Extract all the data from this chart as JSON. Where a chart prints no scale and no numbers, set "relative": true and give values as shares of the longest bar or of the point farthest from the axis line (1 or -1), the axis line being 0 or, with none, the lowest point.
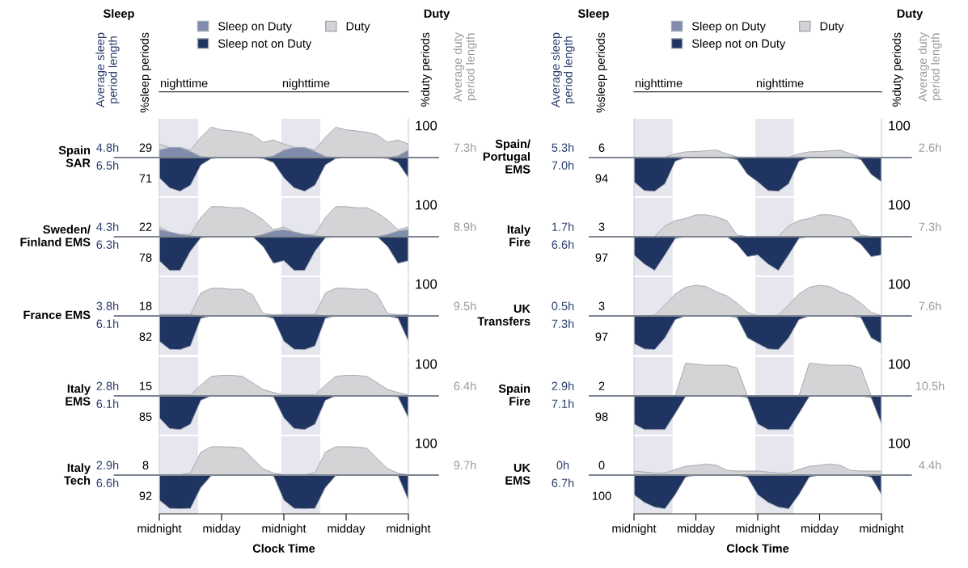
{
  "chart_data": [
    {
      "type": "area",
      "relative": true,
      "categories": [
        null,
        null,
        null,
        null,
        null,
        null,
        null,
        null,
        null,
        null,
        null,
        null,
        null,
        null,
        null,
        null,
        null,
        null,
        null,
        null,
        null,
        null,
        null,
        null,
        null
      ],
      "tick_labels": false,
      "legend": "top",
      "series": [
        {
          "name": "Sleep on Duty",
          "color": "#7f8cab",
          "values": [
            0.22,
            0.3,
            0.3,
            0.18,
            0.03,
            0,
            0,
            0,
            0,
            0,
            0,
            0.05,
            0.22,
            0.3,
            0.3,
            0.18,
            0.03,
            0,
            0,
            0,
            0,
            0,
            0,
            0.05,
            0.22
          ]
        },
        {
          "name": "Duty",
          "color": "#d4d4d6",
          "values": [
            0.4,
            0.3,
            0.3,
            0.22,
            0.6,
            0.9,
            0.82,
            0.79,
            0.75,
            0.67,
            0.45,
            0.52,
            0.4,
            0.3,
            0.3,
            0.22,
            0.6,
            0.9,
            0.82,
            0.79,
            0.75,
            0.67,
            0.45,
            0.52,
            0.4
          ]
        },
        {
          "name": "Sleep not on Duty",
          "color": "#1f3461",
          "values": [
            -0.6,
            -0.9,
            -1,
            -0.82,
            -0.22,
            -0.03,
            0,
            0,
            0,
            0,
            -0.03,
            -0.15,
            -0.6,
            -0.9,
            -1,
            -0.82,
            -0.22,
            -0.03,
            0,
            0,
            0,
            0,
            -0.03,
            -0.15,
            -0.6
          ]
        }
      ],
      "annotations": [
        "Spain\nSAR",
        "4.8h",
        "6.5h",
        "29",
        "71",
        "100",
        "7.3h",
        "Sleep",
        "Duty",
        "Average sleep\nperiod length",
        "%sleep periods",
        "%duty periods",
        "Average duty\nperiod length",
        "nighttime",
        "nighttime"
      ]
    },
    {
      "type": "area",
      "relative": true,
      "categories": [
        null,
        null,
        null,
        null,
        null,
        null,
        null,
        null,
        null,
        null,
        null,
        null,
        null,
        null,
        null,
        null,
        null,
        null,
        null,
        null,
        null,
        null,
        null,
        null,
        null
      ],
      "tick_labels": false,
      "series": [
        {
          "color": "#7f8cab",
          "values": [
            0.21,
            0.14,
            0.07,
            0.03,
            0,
            0,
            0,
            0,
            0,
            0,
            0.07,
            0.17,
            0.21,
            0.14,
            0.07,
            0.03,
            0,
            0,
            0,
            0,
            0,
            0,
            0.07,
            0.17,
            0.21
          ]
        },
        {
          "color": "#d4d4d6",
          "values": [
            0.29,
            0.14,
            0.07,
            0.07,
            0.57,
            0.89,
            0.89,
            0.86,
            0.86,
            0.71,
            0.5,
            0.21,
            0.29,
            0.14,
            0.07,
            0.07,
            0.57,
            0.89,
            0.89,
            0.86,
            0.86,
            0.71,
            0.5,
            0.21,
            0.29
          ]
        },
        {
          "color": "#1f3461",
          "values": [
            -0.71,
            -1,
            -1,
            -0.43,
            -0.03,
            0,
            0,
            0,
            0,
            0,
            -0.29,
            -0.79,
            -0.71,
            -1,
            -1,
            -0.43,
            -0.03,
            0,
            0,
            0,
            0,
            0,
            -0.29,
            -0.79,
            -0.71
          ]
        }
      ],
      "annotations": [
        "Sweden/\nFinland EMS",
        "4.3h",
        "6.3h",
        "22",
        "78",
        "100",
        "8.9h"
      ]
    },
    {
      "type": "area",
      "relative": true,
      "categories": [
        null,
        null,
        null,
        null,
        null,
        null,
        null,
        null,
        null,
        null,
        null,
        null,
        null,
        null,
        null,
        null,
        null,
        null,
        null,
        null,
        null,
        null,
        null,
        null,
        null
      ],
      "tick_labels": false,
      "series": [
        {
          "color": "#7f8cab",
          "values": [
            0.04,
            0.04,
            0.04,
            0.04,
            0,
            0,
            0,
            0,
            0,
            0,
            0,
            0,
            0.04,
            0.04,
            0.04,
            0.04,
            0,
            0,
            0,
            0,
            0,
            0,
            0,
            0,
            0.04
          ]
        },
        {
          "color": "#d4d4d6",
          "values": [
            0.04,
            0.04,
            0.04,
            0.04,
            0.68,
            0.82,
            0.82,
            0.79,
            0.79,
            0.62,
            0.07,
            0.04,
            0.04,
            0.04,
            0.04,
            0.04,
            0.68,
            0.82,
            0.82,
            0.79,
            0.79,
            0.62,
            0.07,
            0.04,
            0.04
          ]
        },
        {
          "color": "#1f3461",
          "values": [
            -0.75,
            -0.99,
            -1,
            -0.89,
            -0.07,
            0,
            0,
            0,
            0,
            0,
            0,
            -0.07,
            -0.75,
            -0.99,
            -1,
            -0.89,
            -0.07,
            0,
            0,
            0,
            0,
            0,
            0,
            -0.07,
            -0.75
          ]
        }
      ],
      "annotations": [
        "France EMS",
        "3.8h",
        "6.1h",
        "18",
        "82",
        "100",
        "9.5h"
      ]
    },
    {
      "type": "area",
      "relative": true,
      "categories": [
        null,
        null,
        null,
        null,
        null,
        null,
        null,
        null,
        null,
        null,
        null,
        null,
        null,
        null,
        null,
        null,
        null,
        null,
        null,
        null,
        null,
        null,
        null,
        null,
        null
      ],
      "tick_labels": false,
      "series": [
        {
          "color": "#d4d4d6",
          "values": [
            0.03,
            0.03,
            0.03,
            0.03,
            0.32,
            0.58,
            0.61,
            0.61,
            0.58,
            0.39,
            0.19,
            0.1,
            0.03,
            0.03,
            0.03,
            0.03,
            0.32,
            0.58,
            0.61,
            0.61,
            0.58,
            0.39,
            0.19,
            0.1,
            0.03
          ]
        },
        {
          "color": "#1f3461",
          "values": [
            -0.65,
            -0.97,
            -1,
            -0.84,
            -0.13,
            0,
            0,
            0,
            0,
            0,
            0,
            -0.03,
            -0.65,
            -0.97,
            -1,
            -0.84,
            -0.13,
            0,
            0,
            0,
            0,
            0,
            0,
            -0.03,
            -0.65
          ]
        }
      ],
      "annotations": [
        "Italy\nEMS",
        "2.8h",
        "6.1h",
        "15",
        "85",
        "100",
        "6.4h"
      ]
    },
    {
      "type": "area",
      "relative": true,
      "categories": [
        "midnight",
        null,
        null,
        null,
        null,
        null,
        "midday",
        null,
        null,
        null,
        null,
        null,
        "midnight",
        null,
        null,
        null,
        null,
        null,
        "midday",
        null,
        null,
        null,
        null,
        null,
        "midnight"
      ],
      "tick_labels": "x",
      "xlabel": "Clock Time",
      "series": [
        {
          "color": "#d4d4d6",
          "values": [
            0.01,
            0.01,
            0.01,
            0.06,
            0.68,
            0.84,
            0.84,
            0.83,
            0.8,
            0.49,
            0.19,
            0.06,
            0.01,
            0.01,
            0.01,
            0.06,
            0.68,
            0.84,
            0.84,
            0.83,
            0.8,
            0.49,
            0.19,
            0.06,
            0.01
          ]
        },
        {
          "color": "#1f3461",
          "values": [
            -0.74,
            -0.99,
            -1,
            -0.99,
            -0.37,
            -0.02,
            0,
            0,
            0,
            0,
            0,
            -0.02,
            -0.74,
            -0.99,
            -1,
            -0.99,
            -0.37,
            -0.02,
            0,
            0,
            0,
            0,
            0,
            -0.02,
            -0.74
          ]
        }
      ],
      "annotations": [
        "Italy\nTech",
        "2.9h",
        "6.6h",
        "8",
        "92",
        "100",
        "9.7h"
      ]
    },
    {
      "type": "area",
      "relative": true,
      "categories": [
        null,
        null,
        null,
        null,
        null,
        null,
        null,
        null,
        null,
        null,
        null,
        null,
        null,
        null,
        null,
        null,
        null,
        null,
        null,
        null,
        null,
        null,
        null,
        null,
        null
      ],
      "tick_labels": false,
      "legend": "top",
      "series": [
        {
          "name": "Sleep on Duty",
          "color": "#7f8cab",
          "values": [
            null,
            null,
            null,
            null,
            null,
            null,
            null,
            null,
            null,
            null,
            null,
            null,
            null,
            null,
            null,
            null,
            null,
            null,
            null,
            null,
            null,
            null,
            null,
            null,
            null
          ]
        },
        {
          "name": "Duty",
          "color": "#d4d4d6",
          "values": [
            0.01,
            0.01,
            0.01,
            0.01,
            0.11,
            0.17,
            0.18,
            0.2,
            0.22,
            0.11,
            0.02,
            0.01,
            0.01,
            0.01,
            0.01,
            0.01,
            0.11,
            0.17,
            0.18,
            0.2,
            0.22,
            0.11,
            0.02,
            0.01,
            0.01
          ]
        },
        {
          "name": "Sleep not on Duty",
          "color": "#1f3461",
          "values": [
            -0.72,
            -0.98,
            -1,
            -0.78,
            -0.11,
            0,
            0,
            0,
            0,
            0,
            -0.06,
            -0.5,
            -0.72,
            -0.98,
            -1,
            -0.78,
            -0.11,
            0,
            0,
            0,
            0,
            0,
            -0.06,
            -0.5,
            -0.72
          ]
        }
      ],
      "annotations": [
        "Spain/\nPortugal\nEMS",
        "5.3h",
        "7.0h",
        "6",
        "94",
        "100",
        "2.6h",
        "Sleep",
        "Duty",
        "Average sleep\nperiod length",
        "%sleep periods",
        "%duty periods",
        "Average duty\nperiod length",
        "nighttime",
        "nighttime"
      ]
    },
    {
      "type": "area",
      "relative": true,
      "categories": [
        null,
        null,
        null,
        null,
        null,
        null,
        null,
        null,
        null,
        null,
        null,
        null,
        null,
        null,
        null,
        null,
        null,
        null,
        null,
        null,
        null,
        null,
        null,
        null,
        null
      ],
      "tick_labels": false,
      "series": [
        {
          "color": "#d4d4d6",
          "values": [
            0.01,
            0.01,
            0.01,
            0.32,
            0.48,
            0.54,
            0.65,
            0.65,
            0.59,
            0.48,
            0.05,
            0.01,
            0.01,
            0.01,
            0.01,
            0.32,
            0.48,
            0.54,
            0.65,
            0.65,
            0.59,
            0.48,
            0.05,
            0.01,
            0.01
          ]
        },
        {
          "color": "#1f3461",
          "values": [
            -0.54,
            -0.81,
            -1,
            -0.54,
            -0.05,
            0,
            0,
            0,
            0,
            0,
            -0.22,
            -0.59,
            -0.54,
            -0.81,
            -1,
            -0.54,
            -0.05,
            0,
            0,
            0,
            0,
            0,
            -0.22,
            -0.59,
            -0.54
          ]
        }
      ],
      "annotations": [
        "Italy\nFire",
        "1.7h",
        "6.6h",
        "3",
        "97",
        "100",
        "7.3h"
      ]
    },
    {
      "type": "area",
      "relative": true,
      "categories": [
        null,
        null,
        null,
        null,
        null,
        null,
        null,
        null,
        null,
        null,
        null,
        null,
        null,
        null,
        null,
        null,
        null,
        null,
        null,
        null,
        null,
        null,
        null,
        null,
        null
      ],
      "tick_labels": false,
      "series": [
        {
          "color": "#d4d4d6",
          "values": [
            0.01,
            0.01,
            0.02,
            0.33,
            0.65,
            0.85,
            0.91,
            0.87,
            0.71,
            0.6,
            0.38,
            0.11,
            0.01,
            0.01,
            0.02,
            0.33,
            0.65,
            0.85,
            0.91,
            0.87,
            0.71,
            0.6,
            0.38,
            0.11,
            0.01
          ]
        },
        {
          "color": "#1f3461",
          "values": [
            -0.82,
            -0.98,
            -1,
            -0.65,
            -0.11,
            0,
            0,
            0,
            0,
            0,
            -0.05,
            -0.65,
            -0.82,
            -0.98,
            -1,
            -0.65,
            -0.11,
            0,
            0,
            0,
            0,
            0,
            -0.05,
            -0.65,
            -0.82
          ]
        }
      ],
      "annotations": [
        "UK\nTransfers",
        "0.5h",
        "7.3h",
        "3",
        "97",
        "100",
        "7.6h"
      ]
    },
    {
      "type": "area",
      "relative": true,
      "categories": [
        null,
        null,
        null,
        null,
        null,
        null,
        null,
        null,
        null,
        null,
        null,
        null,
        null,
        null,
        null,
        null,
        null,
        null,
        null,
        null,
        null,
        null,
        null,
        null,
        null
      ],
      "tick_labels": false,
      "series": [
        {
          "color": "#d4d4d6",
          "values": [
            0,
            0,
            0,
            0,
            0,
            0.97,
            0.94,
            0.91,
            0.91,
            0.91,
            0.83,
            0,
            0,
            0,
            0,
            0,
            0,
            0.97,
            0.94,
            0.91,
            0.91,
            0.91,
            0.83,
            0,
            0
          ]
        },
        {
          "color": "#1f3461",
          "values": [
            -0.83,
            -1,
            -1,
            -1,
            -0.52,
            -0.02,
            0,
            0,
            0,
            0,
            0,
            -0.05,
            -0.83,
            -1,
            -1,
            -1,
            -0.52,
            -0.02,
            0,
            0,
            0,
            0,
            0,
            -0.05,
            -0.83
          ]
        }
      ],
      "annotations": [
        "Spain\nFire",
        "2.9h",
        "7.1h",
        "2",
        "98",
        "100",
        "10.5h"
      ]
    },
    {
      "type": "area",
      "relative": true,
      "categories": [
        "midnight",
        null,
        null,
        null,
        null,
        null,
        "midday",
        null,
        null,
        null,
        null,
        null,
        "midnight",
        null,
        null,
        null,
        null,
        null,
        "midday",
        null,
        null,
        null,
        null,
        null,
        "midnight"
      ],
      "tick_labels": "x",
      "xlabel": "Clock Time",
      "series": [
        {
          "color": "#d4d4d6",
          "values": [
            0.12,
            0.09,
            0.06,
            0.06,
            0.17,
            0.26,
            0.29,
            0.33,
            0.29,
            0.14,
            0.12,
            0.12,
            0.12,
            0.09,
            0.06,
            0.06,
            0.17,
            0.26,
            0.29,
            0.33,
            0.29,
            0.14,
            0.12,
            0.12,
            0.12
          ]
        },
        {
          "color": "#1f3461",
          "values": [
            -0.58,
            -0.81,
            -0.95,
            -1,
            -0.58,
            -0.06,
            0,
            0,
            0,
            0,
            0,
            -0.06,
            -0.58,
            -0.81,
            -0.95,
            -1,
            -0.58,
            -0.06,
            0,
            0,
            0,
            0,
            0,
            -0.06,
            -0.58
          ]
        }
      ],
      "annotations": [
        "UK\nEMS",
        "0h",
        "6.7h",
        "0",
        "100",
        "100",
        "4.4h"
      ]
    }
  ]
}
